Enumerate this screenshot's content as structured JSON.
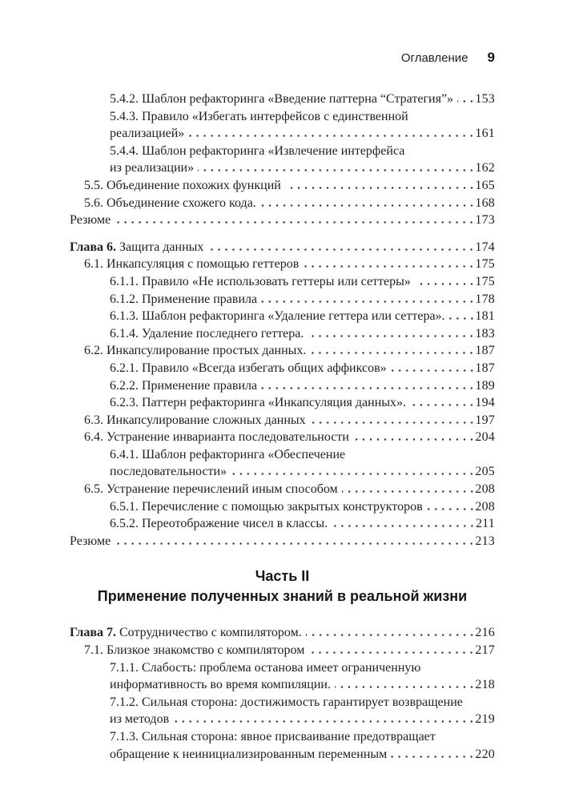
{
  "header": {
    "title": "Оглавление",
    "page_number": "9"
  },
  "colors": {
    "background": "#ffffff",
    "text": "#1f1f1f"
  },
  "toc": {
    "entries": [
      {
        "level": "subsection",
        "lines": [
          "5.4.2. Шаблон рефакторинга «Введение паттерна “Стратегия”»"
        ],
        "page": "153"
      },
      {
        "level": "subsection",
        "lines": [
          "5.4.3. Правило «Избегать интерфейсов с единственной",
          "реализацией»"
        ],
        "page": "161"
      },
      {
        "level": "subsection",
        "lines": [
          "5.4.4. Шаблон рефакторинга «Извлечение интерфейса",
          "из реализации»"
        ],
        "page": "162"
      },
      {
        "level": "section",
        "lines": [
          "5.5. Объединение похожих функций"
        ],
        "page": "165"
      },
      {
        "level": "section",
        "lines": [
          "5.6. Объединение схожего кода."
        ],
        "page": "168"
      },
      {
        "level": "summary",
        "lines": [
          "Резюме"
        ],
        "page": "173"
      },
      {
        "level": "chapter",
        "bold_prefix": "Глава 6.",
        "lines": [
          "Защита данных"
        ],
        "page": "174",
        "gap_before": true
      },
      {
        "level": "section",
        "lines": [
          "6.1. Инкапсуляция с помощью геттеров"
        ],
        "page": "175"
      },
      {
        "level": "subsection",
        "lines": [
          "6.1.1. Правило «Не использовать геттеры или сеттеры»"
        ],
        "page": "175"
      },
      {
        "level": "subsection",
        "lines": [
          "6.1.2. Применение правила"
        ],
        "page": "178"
      },
      {
        "level": "subsection",
        "lines": [
          "6.1.3. Шаблон рефакторинга «Удаление геттера или сеттера»."
        ],
        "page": "181"
      },
      {
        "level": "subsection",
        "lines": [
          "6.1.4. Удаление последнего геттера."
        ],
        "page": "183"
      },
      {
        "level": "section",
        "lines": [
          "6.2. Инкапсулирование простых данных."
        ],
        "page": "187"
      },
      {
        "level": "subsection",
        "lines": [
          "6.2.1. Правило «Всегда избегать общих аффиксов»"
        ],
        "page": "187"
      },
      {
        "level": "subsection",
        "lines": [
          "6.2.2. Применение правила"
        ],
        "page": "189"
      },
      {
        "level": "subsection",
        "lines": [
          "6.2.3. Паттерн рефакторинга «Инкапсуляция данных»."
        ],
        "page": "194"
      },
      {
        "level": "section",
        "lines": [
          "6.3. Инкапсулирование сложных данных"
        ],
        "page": "197"
      },
      {
        "level": "section",
        "lines": [
          "6.4. Устранение инварианта последовательности"
        ],
        "page": "204"
      },
      {
        "level": "subsection",
        "lines": [
          "6.4.1. Шаблон рефакторинга «Обеспечение",
          "последовательности»"
        ],
        "page": "205"
      },
      {
        "level": "section",
        "lines": [
          "6.5. Устранение перечислений иным способом"
        ],
        "page": "208"
      },
      {
        "level": "subsection",
        "lines": [
          "6.5.1. Перечисление с помощью закрытых конструкторов"
        ],
        "page": "208"
      },
      {
        "level": "subsection",
        "lines": [
          "6.5.2. Переотображение чисел в классы."
        ],
        "page": "211"
      },
      {
        "level": "summary",
        "lines": [
          "Резюме"
        ],
        "page": "213"
      },
      {
        "level": "part",
        "lines": [
          "Часть II",
          "Применение полученных знаний в реальной жизни"
        ]
      },
      {
        "level": "chapter",
        "bold_prefix": "Глава 7.",
        "lines": [
          "Сотрудничество с компилятором."
        ],
        "page": "216"
      },
      {
        "level": "section",
        "lines": [
          "7.1. Близкое знакомство с компилятором"
        ],
        "page": "217"
      },
      {
        "level": "subsection",
        "lines": [
          "7.1.1. Слабость: проблема останова имеет ограниченную",
          "информативность во время компиляции."
        ],
        "page": "218"
      },
      {
        "level": "subsection",
        "lines": [
          "7.1.2. Сильная сторона: достижимость гарантирует возвращение",
          "из методов"
        ],
        "page": "219"
      },
      {
        "level": "subsection",
        "lines": [
          "7.1.3. Сильная сторона: явное присваивание предотвращает",
          "обращение к неинициализированным переменным"
        ],
        "page": "220"
      }
    ]
  }
}
